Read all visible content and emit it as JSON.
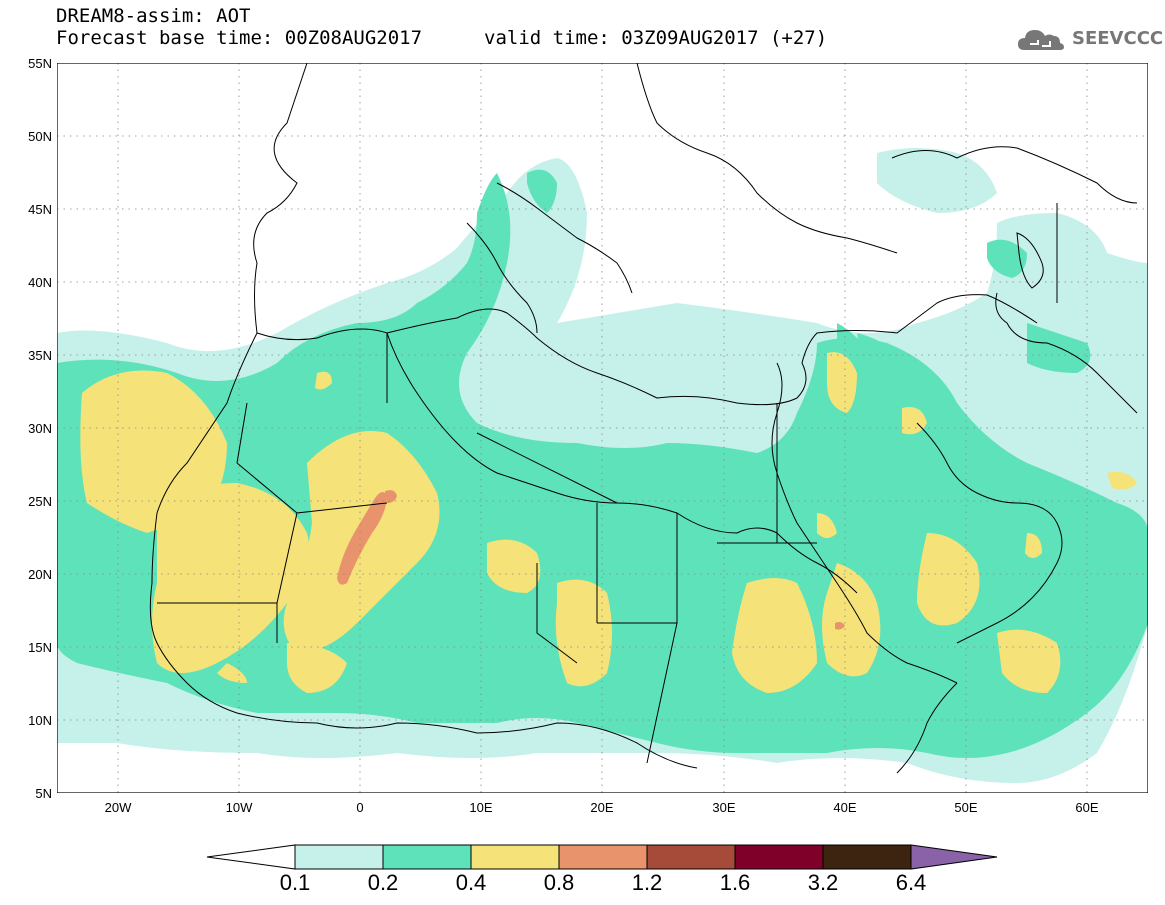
{
  "header": {
    "title": "DREAM8-assim: AOT",
    "base_time": "Forecast base time: 00Z08AUG2017",
    "valid_time": "valid time: 03Z09AUG2017 (+27)",
    "logo": "SEEVCCC"
  },
  "map": {
    "lat_labels": [
      "55N",
      "50N",
      "45N",
      "40N",
      "35N",
      "30N",
      "25N",
      "20N",
      "15N",
      "10N",
      "5N"
    ],
    "lon_labels": [
      "20W",
      "10W",
      "0",
      "10E",
      "20E",
      "30E",
      "40E",
      "50E",
      "60E"
    ],
    "lon_range": [
      -25,
      65
    ],
    "lat_range": [
      5,
      55
    ],
    "grid": true
  },
  "legend": {
    "levels": [
      "0.1",
      "0.2",
      "0.4",
      "0.8",
      "1.2",
      "1.6",
      "3.2",
      "6.4"
    ],
    "colors": [
      "#c6f0ea",
      "#5ee2b9",
      "#f5e37a",
      "#e8936b",
      "#a64a3a",
      "#7f0028",
      "#3d2410",
      "#8a62a8"
    ]
  }
}
